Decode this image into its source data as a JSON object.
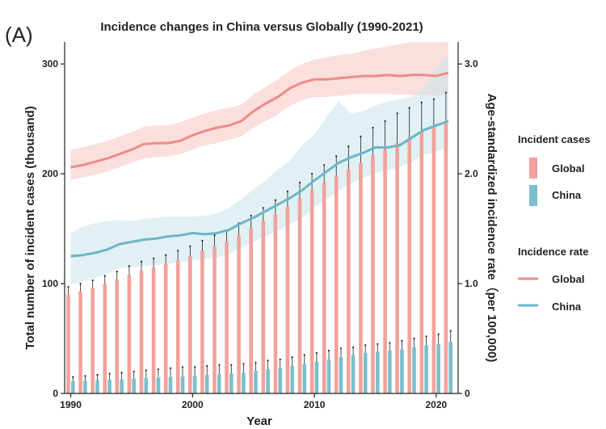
{
  "panel_label": "(A)",
  "chart_data": {
    "type": "bar+line",
    "title": "Incidence changes in China versus Globally (1990-2021)",
    "xlabel": "Year",
    "ylabel_left": "Total number of incident cases (thousand)",
    "ylabel_right": "Age-standardized incidence rate（per 100,000)",
    "xlim": [
      1989.5,
      2021.8
    ],
    "ylim_left": [
      0,
      320
    ],
    "ylim_right": [
      0,
      3.2
    ],
    "x_ticks": [
      1990,
      2000,
      2010,
      2020
    ],
    "y_ticks_left": [
      0,
      100,
      200,
      300
    ],
    "y_ticks_right": [
      0,
      1.0,
      2.0,
      3.0
    ],
    "y_ticks_right_labels": [
      "0",
      "1.0",
      "2.0",
      "3.0"
    ],
    "years": [
      1990,
      1991,
      1992,
      1993,
      1994,
      1995,
      1996,
      1997,
      1998,
      1999,
      2000,
      2001,
      2002,
      2003,
      2004,
      2005,
      2006,
      2007,
      2008,
      2009,
      2010,
      2011,
      2012,
      2013,
      2014,
      2015,
      2016,
      2017,
      2018,
      2019,
      2020,
      2021
    ],
    "bars": [
      {
        "name": "Global",
        "color": "#f2a19b",
        "values": [
          90,
          93,
          96,
          100,
          104,
          108,
          112,
          115,
          118,
          121,
          125,
          130,
          134,
          138,
          144,
          150,
          157,
          163,
          170,
          178,
          185,
          192,
          198,
          204,
          210,
          217,
          222,
          228,
          233,
          238,
          242,
          246
        ],
        "upper": [
          97,
          100,
          103,
          107,
          111,
          116,
          120,
          123,
          126,
          130,
          134,
          139,
          144,
          148,
          155,
          162,
          169,
          176,
          184,
          192,
          200,
          208,
          216,
          225,
          234,
          242,
          248,
          255,
          260,
          265,
          268,
          274
        ]
      },
      {
        "name": "China",
        "color": "#7bbfcc",
        "values": [
          11,
          11.5,
          12,
          12.5,
          13,
          13.5,
          14,
          14.5,
          15,
          15.5,
          16,
          17,
          17.5,
          18,
          19,
          20.5,
          22,
          23,
          25,
          27,
          29,
          31,
          33,
          35,
          37,
          38,
          39,
          40,
          42,
          44,
          45,
          47
        ],
        "upper": [
          15,
          16,
          17,
          18,
          19,
          20,
          21,
          22,
          23,
          24,
          24,
          25,
          26,
          26,
          27,
          28,
          30,
          31,
          33,
          35,
          37,
          39,
          41,
          42,
          44,
          45,
          46,
          48,
          50,
          52,
          54,
          57
        ]
      }
    ],
    "lines": [
      {
        "name": "Global",
        "color": "#ee8c86",
        "band_color": "#f6c4c1",
        "values": [
          2.06,
          2.08,
          2.11,
          2.14,
          2.18,
          2.22,
          2.27,
          2.28,
          2.28,
          2.3,
          2.35,
          2.39,
          2.42,
          2.44,
          2.48,
          2.57,
          2.64,
          2.7,
          2.78,
          2.83,
          2.86,
          2.86,
          2.87,
          2.88,
          2.89,
          2.89,
          2.9,
          2.89,
          2.9,
          2.9,
          2.89,
          2.92
        ],
        "lower": [
          1.94,
          1.97,
          1.99,
          2.02,
          2.06,
          2.1,
          2.14,
          2.15,
          2.16,
          2.18,
          2.22,
          2.26,
          2.28,
          2.31,
          2.34,
          2.42,
          2.48,
          2.54,
          2.62,
          2.67,
          2.7,
          2.7,
          2.71,
          2.72,
          2.73,
          2.73,
          2.73,
          2.72,
          2.72,
          2.72,
          2.71,
          2.73
        ],
        "upper": [
          2.22,
          2.24,
          2.27,
          2.3,
          2.34,
          2.38,
          2.43,
          2.44,
          2.44,
          2.47,
          2.51,
          2.55,
          2.58,
          2.6,
          2.63,
          2.72,
          2.79,
          2.86,
          2.94,
          3.0,
          3.04,
          3.06,
          3.08,
          3.09,
          3.12,
          3.14,
          3.16,
          3.18,
          3.2,
          3.2,
          3.2,
          3.2
        ]
      },
      {
        "name": "China",
        "color": "#6db5c7",
        "band_color": "#c6e3e9",
        "values": [
          1.25,
          1.26,
          1.28,
          1.31,
          1.36,
          1.38,
          1.4,
          1.41,
          1.43,
          1.44,
          1.46,
          1.45,
          1.46,
          1.49,
          1.55,
          1.6,
          1.66,
          1.72,
          1.78,
          1.85,
          1.94,
          2.02,
          2.1,
          2.15,
          2.19,
          2.24,
          2.24,
          2.26,
          2.33,
          2.4,
          2.44,
          2.48
        ],
        "lower": [
          0.99,
          1.02,
          1.05,
          1.09,
          1.14,
          1.15,
          1.16,
          1.17,
          1.18,
          1.2,
          1.21,
          1.22,
          1.24,
          1.27,
          1.33,
          1.38,
          1.43,
          1.48,
          1.54,
          1.6,
          1.69,
          1.77,
          1.85,
          1.91,
          1.96,
          2.01,
          2.03,
          2.06,
          2.11,
          2.17,
          2.2,
          2.25
        ],
        "upper": [
          1.46,
          1.52,
          1.55,
          1.57,
          1.58,
          1.57,
          1.59,
          1.6,
          1.61,
          1.61,
          1.61,
          1.62,
          1.64,
          1.69,
          1.77,
          1.86,
          1.94,
          2.04,
          2.12,
          2.26,
          2.36,
          2.52,
          2.66,
          2.55,
          2.57,
          2.62,
          2.66,
          2.68,
          2.7,
          2.78,
          2.96,
          3.08
        ]
      }
    ],
    "legend": {
      "position": "right",
      "bars_title": "Incident cases",
      "bars_items": [
        "Global",
        "China"
      ],
      "lines_title": "Incidence rate",
      "lines_items": [
        "Global",
        "China"
      ]
    }
  }
}
